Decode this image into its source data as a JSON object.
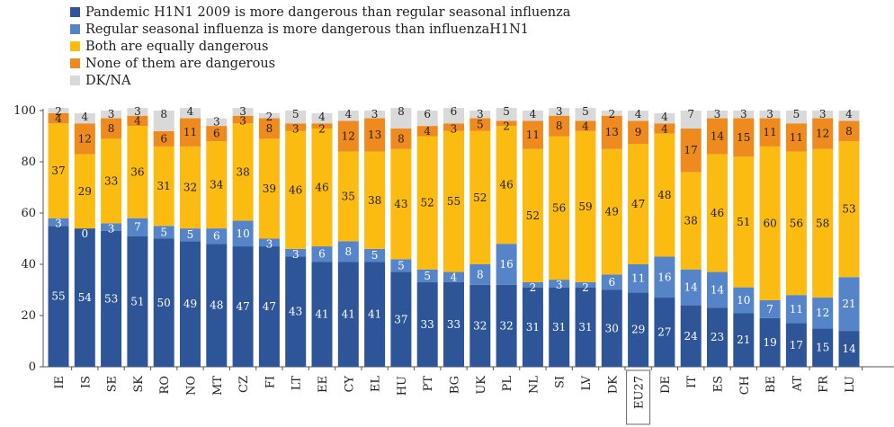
{
  "chart_data": {
    "type": "bar",
    "stacked": true,
    "xlabel": "",
    "ylabel": "",
    "ylim": [
      0,
      100
    ],
    "yticks": [
      0,
      20,
      40,
      60,
      80,
      100
    ],
    "grid": false,
    "legend_position": "top-left",
    "highlighted_category": "EU27",
    "categories": [
      "IE",
      "IS",
      "SE",
      "SK",
      "RO",
      "NO",
      "MT",
      "CZ",
      "FI",
      "LT",
      "EE",
      "CY",
      "EL",
      "HU",
      "PT",
      "BG",
      "UK",
      "PL",
      "NL",
      "SI",
      "LV",
      "DK",
      "EU27",
      "DE",
      "IT",
      "ES",
      "CH",
      "BE",
      "AT",
      "FR",
      "LU"
    ],
    "series": [
      {
        "name": "Pandemic H1N1 2009 is more dangerous than regular seasonal influenza",
        "color": "#2e5597",
        "values": [
          55,
          54,
          53,
          51,
          50,
          49,
          48,
          47,
          47,
          43,
          41,
          41,
          41,
          37,
          33,
          33,
          32,
          32,
          31,
          31,
          31,
          30,
          29,
          27,
          24,
          23,
          21,
          19,
          17,
          15,
          14
        ]
      },
      {
        "name": "Regular seasonal influenza is more dangerous than influenzaH1N1",
        "color": "#5585c8",
        "values": [
          3,
          0,
          3,
          7,
          5,
          5,
          6,
          10,
          3,
          3,
          6,
          8,
          5,
          5,
          5,
          4,
          8,
          16,
          2,
          3,
          2,
          6,
          11,
          16,
          14,
          14,
          10,
          7,
          11,
          12,
          21
        ]
      },
      {
        "name": "Both are equally dangerous",
        "color": "#fbbb10",
        "values": [
          37,
          29,
          33,
          36,
          31,
          32,
          34,
          38,
          39,
          46,
          46,
          35,
          38,
          43,
          52,
          55,
          52,
          46,
          52,
          56,
          59,
          49,
          47,
          48,
          38,
          46,
          51,
          60,
          56,
          58,
          53
        ]
      },
      {
        "name": "None of them are dangerous",
        "color": "#ee8a1e",
        "values": [
          4,
          12,
          8,
          4,
          6,
          11,
          6,
          3,
          8,
          3,
          2,
          12,
          13,
          8,
          4,
          3,
          5,
          2,
          11,
          8,
          4,
          13,
          9,
          4,
          17,
          14,
          15,
          11,
          11,
          12,
          8
        ]
      },
      {
        "name": "DK/NA",
        "color": "#d9d9d9",
        "values": [
          2,
          4,
          3,
          3,
          8,
          4,
          3,
          3,
          2,
          5,
          4,
          4,
          3,
          8,
          6,
          6,
          3,
          5,
          4,
          3,
          5,
          2,
          4,
          4,
          7,
          3,
          3,
          3,
          5,
          3,
          4
        ]
      }
    ]
  }
}
